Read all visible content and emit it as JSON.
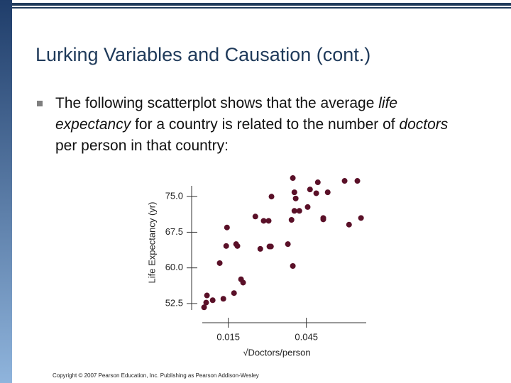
{
  "title": "Lurking Variables and Causation (cont.)",
  "bullet_runs": [
    "The following scatterplot shows that the average ",
    "life expectancy",
    " for a country is related to the number of ",
    "doctors",
    " per person in that country:"
  ],
  "copyright": "Copyright © 2007 Pearson Education, Inc. Publishing as Pearson Addison-Wesley",
  "chart_data": {
    "type": "scatter",
    "xlabel": "√Doctors/person",
    "ylabel": "Life Expectancy (yr)",
    "color": "#5a1028",
    "xlim": [
      0.005,
      0.068
    ],
    "ylim": [
      50.7,
      79.8
    ],
    "xticks": [
      0.015,
      0.045
    ],
    "yticks": [
      {
        "value": 52.5,
        "label": "52.5"
      },
      {
        "value": 60,
        "label": "60.0"
      },
      {
        "value": 67.5,
        "label": "67.5"
      },
      {
        "value": 75,
        "label": "75.0"
      }
    ],
    "x": [
      0.0057,
      0.0068,
      0.0065,
      0.009,
      0.0131,
      0.0172,
      0.0199,
      0.0207,
      0.0117,
      0.0142,
      0.0145,
      0.018,
      0.0185,
      0.0254,
      0.0273,
      0.0286,
      0.0305,
      0.0308,
      0.0314,
      0.0316,
      0.0379,
      0.0393,
      0.0398,
      0.0398,
      0.0404,
      0.0409,
      0.0404,
      0.0423,
      0.0455,
      0.0464,
      0.0494,
      0.0488,
      0.0515,
      0.0515,
      0.0532,
      0.0597,
      0.0646,
      0.0614,
      0.066
    ],
    "values": [
      51.7,
      54.2,
      52.7,
      53.2,
      53.5,
      54.7,
      57.6,
      56.9,
      61.0,
      64.6,
      68.5,
      65.0,
      64.6,
      70.8,
      64.0,
      69.9,
      69.9,
      64.5,
      64.5,
      75.0,
      65.0,
      70.1,
      60.4,
      78.9,
      75.9,
      74.6,
      72.0,
      72.0,
      72.8,
      76.5,
      78.0,
      75.7,
      70.2,
      70.5,
      75.9,
      78.3,
      78.3,
      69.1,
      70.5
    ]
  }
}
